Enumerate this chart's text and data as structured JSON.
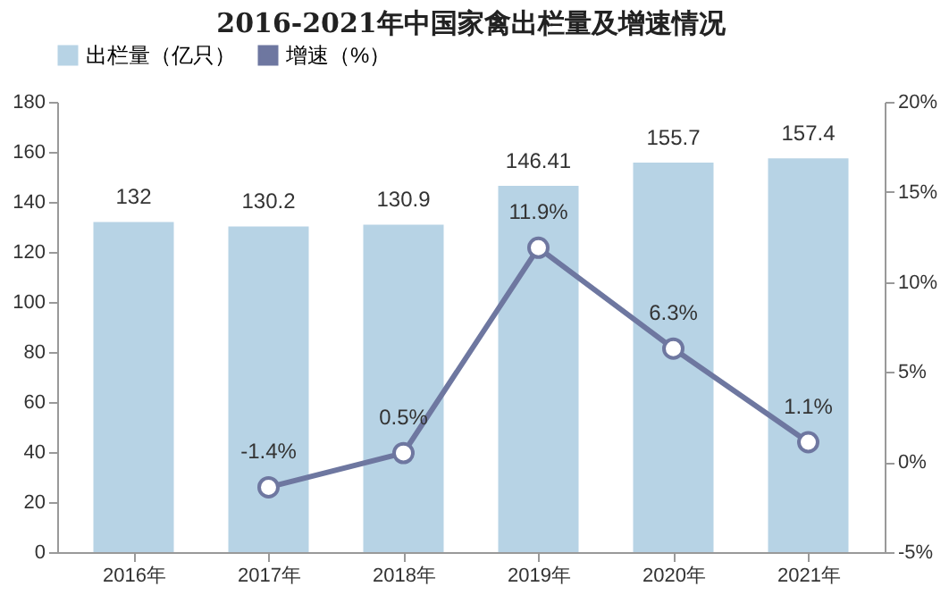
{
  "chart_data": {
    "type": "bar",
    "title": "2016-2021年中国家禽出栏量及增速情况",
    "categories": [
      "2016年",
      "2017年",
      "2018年",
      "2019年",
      "2020年",
      "2021年"
    ],
    "series": [
      {
        "name": "出栏量（亿只）",
        "color": "#b7d3e5",
        "values": [
          132,
          130.2,
          130.9,
          146.41,
          155.7,
          157.4
        ],
        "value_labels": [
          "132",
          "130.2",
          "130.9",
          "146.41",
          "155.7",
          "157.4"
        ]
      },
      {
        "name": "增速（%）",
        "type": "line",
        "axis": "y2",
        "color": "#6e77a0",
        "values": [
          null,
          -1.4,
          0.5,
          11.9,
          6.3,
          1.1
        ],
        "value_labels": [
          null,
          "-1.4%",
          "0.5%",
          "11.9%",
          "6.3%",
          "1.1%"
        ]
      }
    ],
    "ylim": [
      0,
      180
    ],
    "yticks": [
      0,
      20,
      40,
      60,
      80,
      100,
      120,
      140,
      160,
      180
    ],
    "y2lim": [
      -5,
      20
    ],
    "y2ticks": [
      {
        "value": -5,
        "label": "-5%"
      },
      {
        "value": 0,
        "label": "0%"
      },
      {
        "value": 5,
        "label": "5%"
      },
      {
        "value": 10,
        "label": "10%"
      },
      {
        "value": 15,
        "label": "15%"
      },
      {
        "value": 20,
        "label": "20%"
      }
    ],
    "legend": "top",
    "grid": false,
    "marker": "circle",
    "line_style": "solid"
  }
}
